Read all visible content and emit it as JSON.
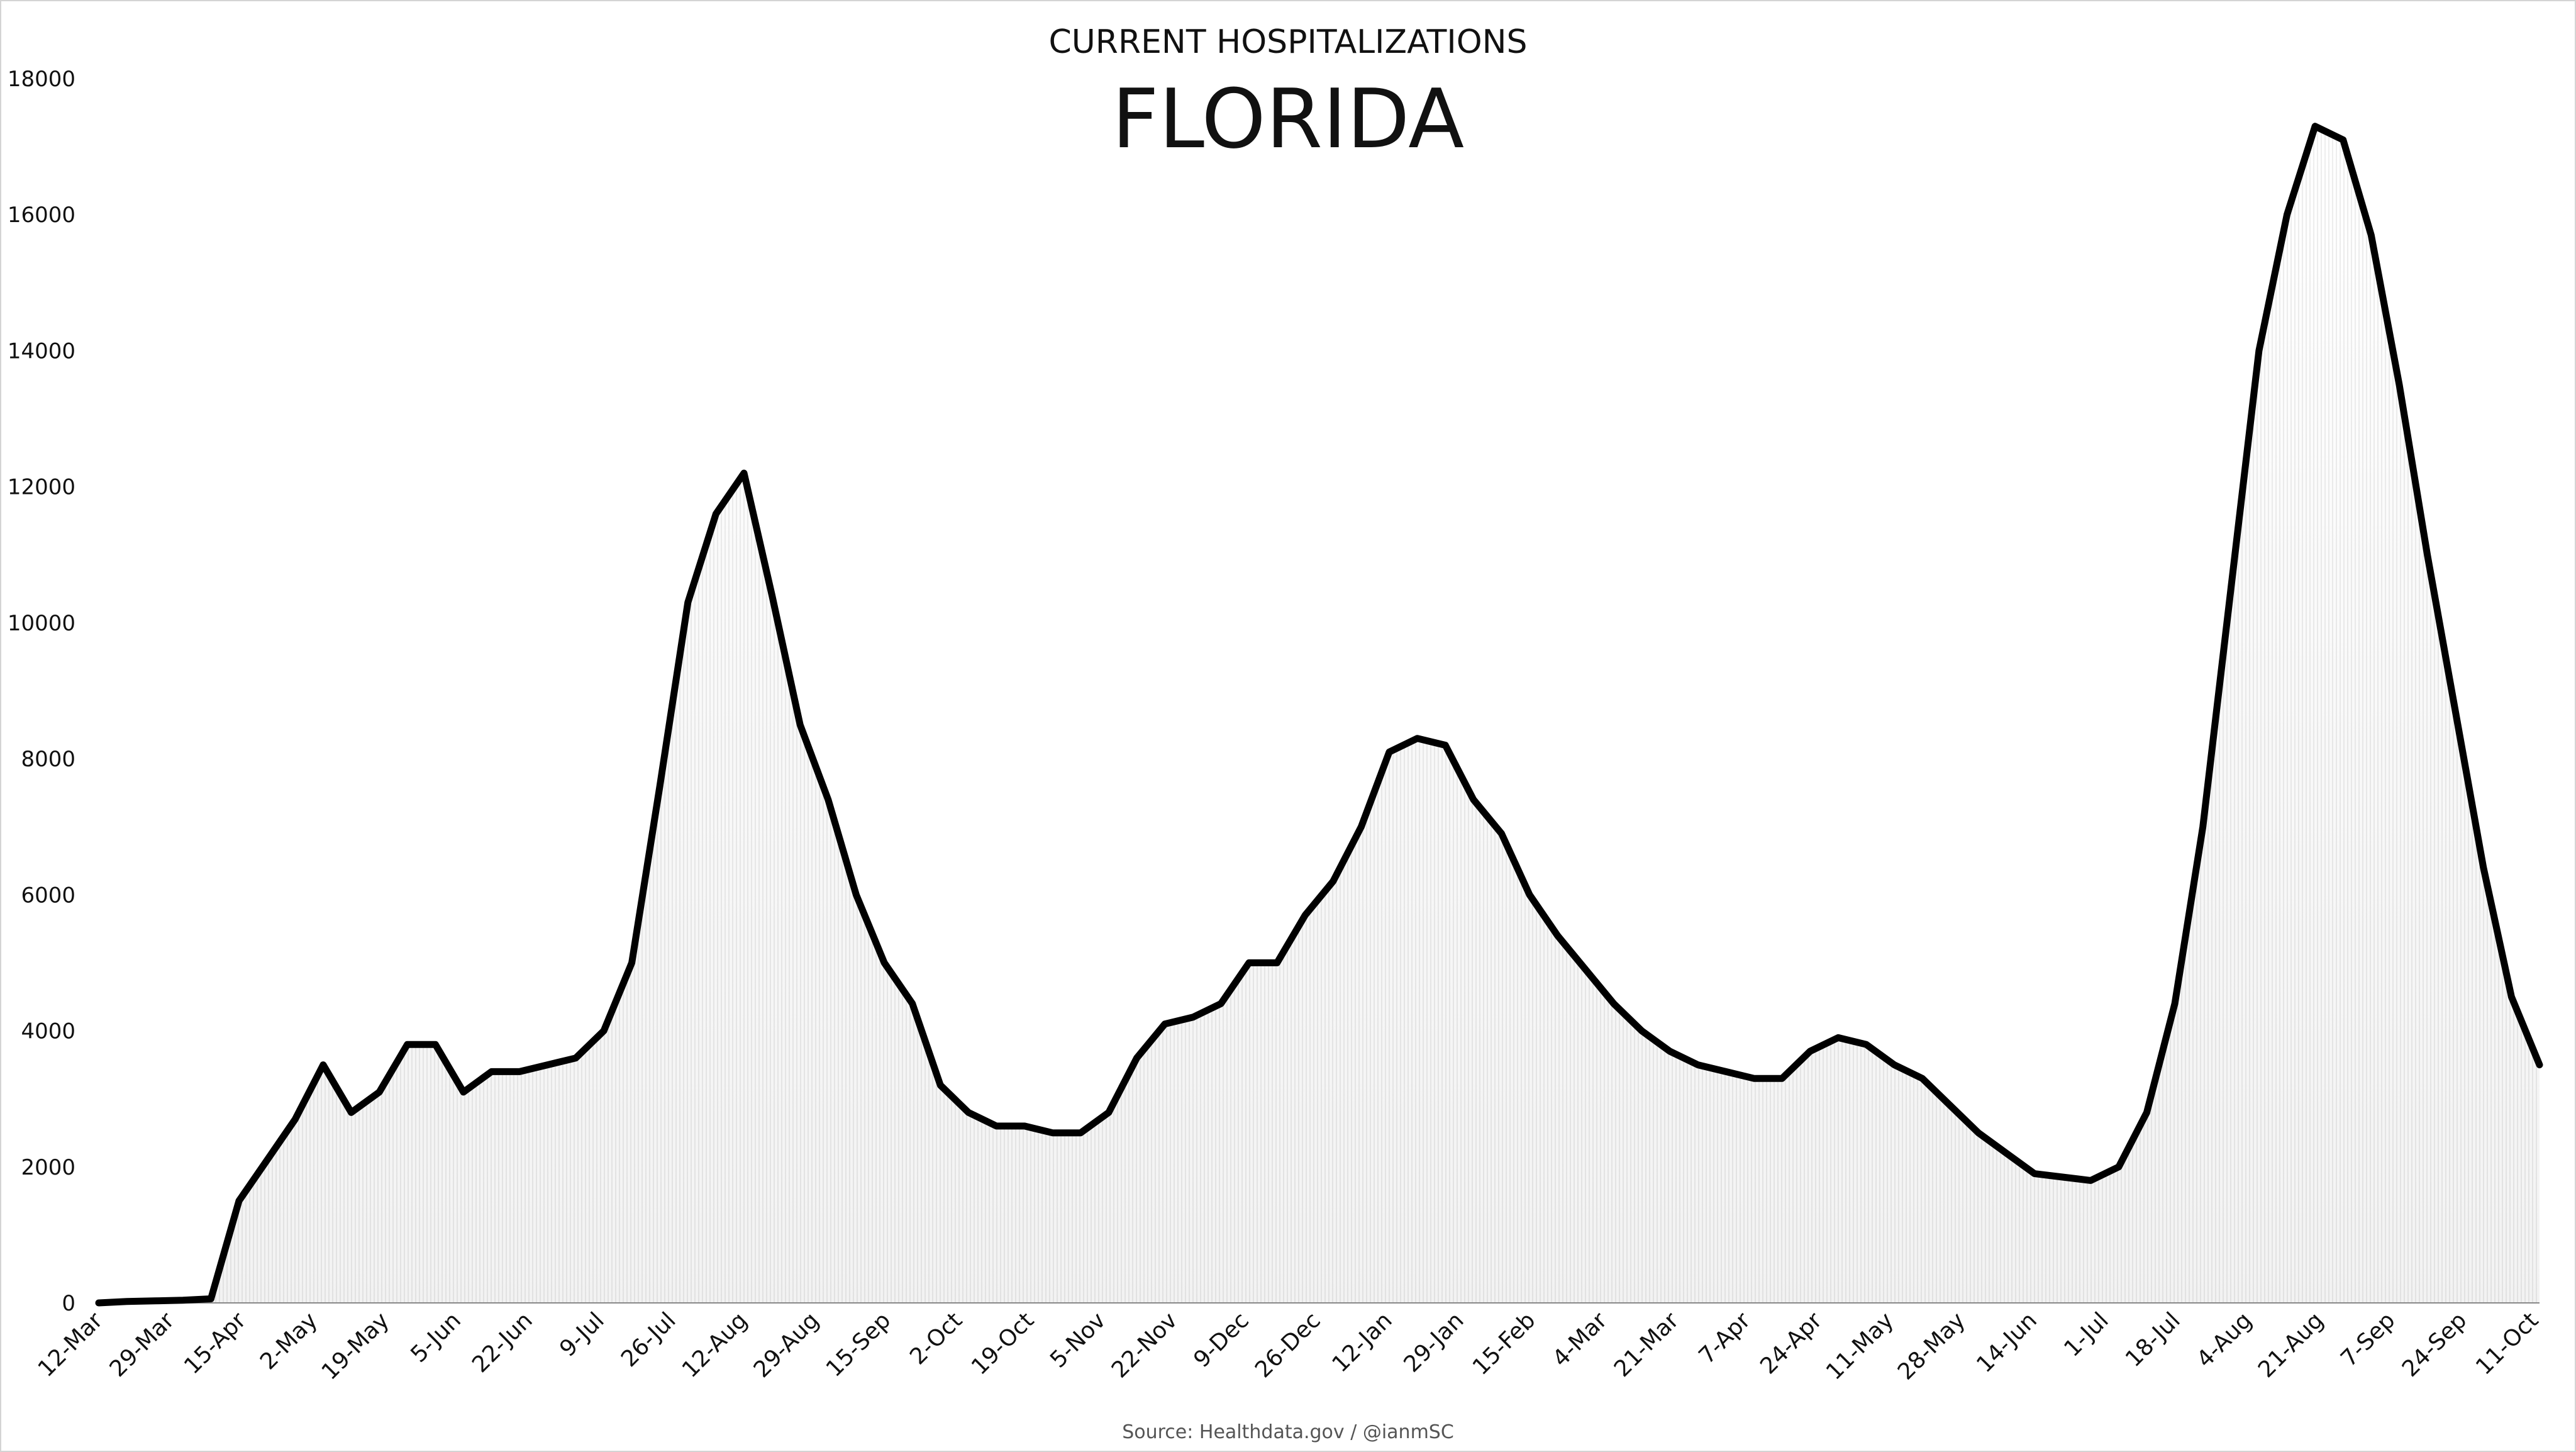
{
  "chart_data": {
    "type": "line",
    "title": "CURRENT HOSPITALIZATIONS",
    "subtitle": "FLORIDA",
    "source": "Source: Healthdata.gov / @ianmSC",
    "xlabel": "",
    "ylabel": "",
    "ylim": [
      0,
      18000
    ],
    "yticks": [
      0,
      2000,
      4000,
      6000,
      8000,
      10000,
      12000,
      14000,
      16000,
      18000
    ],
    "grid": false,
    "legend": "none",
    "x_ticks": [
      "12-Mar",
      "29-Mar",
      "15-Apr",
      "2-May",
      "19-May",
      "5-Jun",
      "22-Jun",
      "9-Jul",
      "26-Jul",
      "12-Aug",
      "29-Aug",
      "15-Sep",
      "2-Oct",
      "19-Oct",
      "5-Nov",
      "22-Nov",
      "9-Dec",
      "26-Dec",
      "12-Jan",
      "29-Jan",
      "15-Feb",
      "4-Mar",
      "21-Mar",
      "7-Apr",
      "24-Apr",
      "11-May",
      "28-May",
      "14-Jun",
      "1-Jul",
      "18-Jul",
      "4-Aug",
      "21-Aug",
      "7-Sep",
      "24-Sep",
      "11-Oct"
    ],
    "colors": {
      "line": "#000000",
      "fill_top": "#ffffff",
      "fill_bottom": "#e8e8e8"
    },
    "series": [
      {
        "values_every_5_days": [
          0,
          20,
          30,
          40,
          60,
          1500,
          2100,
          2700,
          3500,
          2800,
          3100,
          3800,
          3800,
          3100,
          3400,
          3400,
          3500,
          3600,
          4000,
          5000,
          7600,
          10300,
          11600,
          12200,
          10400,
          8500,
          7400,
          6000,
          5000,
          4400,
          3200,
          2800,
          2600,
          2600,
          2500,
          2500,
          2800,
          3600,
          4100,
          4200,
          4400,
          5000,
          5000,
          5700,
          6200,
          7000,
          8100,
          8300,
          8200,
          7400,
          6900,
          6000,
          5400,
          4900,
          4400,
          4000,
          3700,
          3500,
          3400,
          3300,
          3300,
          3700,
          3900,
          3800,
          3500,
          3300,
          2900,
          2500,
          2200,
          1900,
          1850,
          1800,
          2000,
          2800,
          4400,
          7000,
          10500,
          14000,
          16000,
          17300,
          17100,
          15700,
          13500,
          11000,
          8700,
          6400,
          4500,
          3500
        ]
      }
    ]
  }
}
